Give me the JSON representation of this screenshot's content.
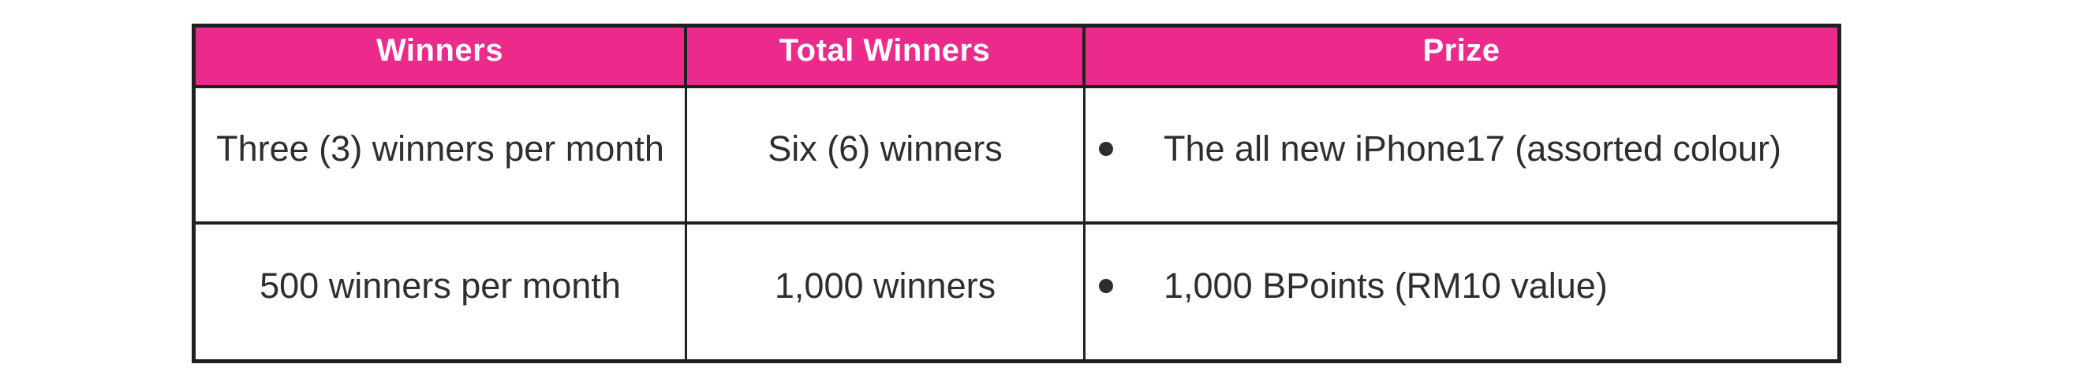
{
  "table": {
    "columns": [
      "Winners",
      "Total Winners",
      "Prize"
    ],
    "rows": [
      {
        "winners": "Three (3) winners per month",
        "total_winners": "Six (6) winners",
        "prize": "The all new iPhone17 (assorted colour)"
      },
      {
        "winners": "500 winners per month",
        "total_winners": "1,000 winners",
        "prize": "1,000 BPoints (RM10 value)"
      }
    ],
    "icons": {
      "prize_bullet": "filled-circle-bullet"
    },
    "colors": {
      "header_bg": "#EB2A8C",
      "header_text": "#FFFFFF",
      "border": "#231F20",
      "body_text": "#2E2E2E",
      "page_bg": "#FFFFFF"
    }
  }
}
